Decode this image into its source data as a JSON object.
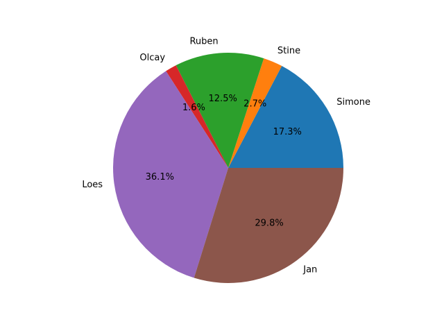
{
  "chart_data": {
    "type": "pie",
    "title": "",
    "start_angle_deg": 0,
    "direction": "counterclockwise",
    "slices": [
      {
        "label": "Simone",
        "percent": 17.3,
        "percent_label": "17.3%",
        "color": "#1f77b4"
      },
      {
        "label": "Stine",
        "percent": 2.7,
        "percent_label": "2.7%",
        "color": "#ff7f0e"
      },
      {
        "label": "Ruben",
        "percent": 12.5,
        "percent_label": "12.5%",
        "color": "#2ca02c"
      },
      {
        "label": "Olcay",
        "percent": 1.6,
        "percent_label": "1.6%",
        "color": "#d62728"
      },
      {
        "label": "Loes",
        "percent": 36.1,
        "percent_label": "36.1%",
        "color": "#9467bd"
      },
      {
        "label": "Jan",
        "percent": 29.8,
        "percent_label": "29.8%",
        "color": "#8c564b"
      }
    ]
  }
}
